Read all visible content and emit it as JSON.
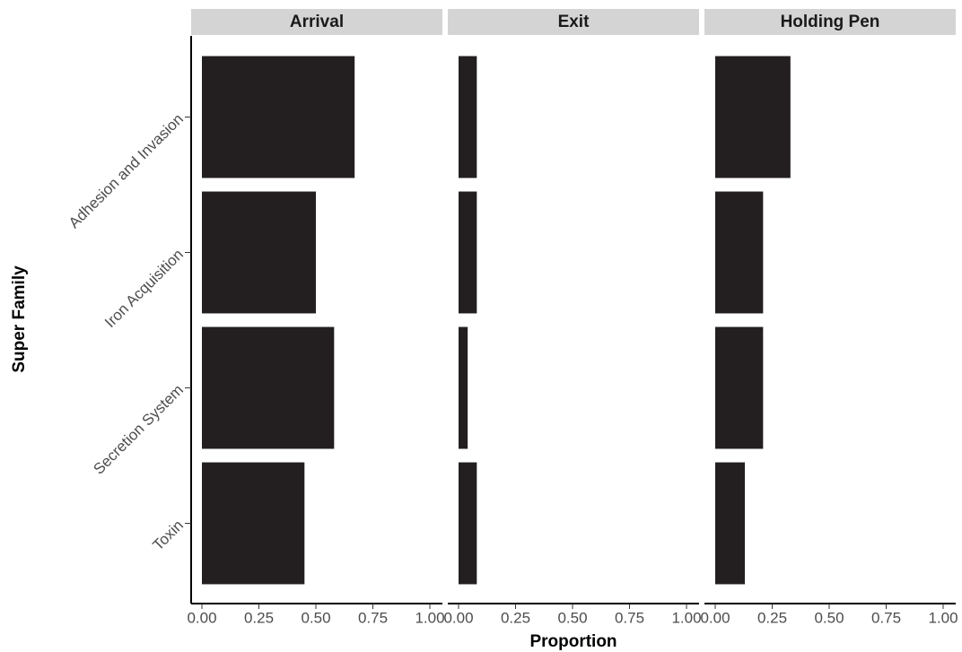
{
  "chart_data": {
    "type": "bar",
    "orientation": "horizontal",
    "xlabel": "Proportion",
    "ylabel": "Super Family",
    "categories": [
      "Adhesion and Invasion",
      "Iron Acquisition",
      "Secretion System",
      "Toxin"
    ],
    "color": "#231f20",
    "facets": [
      {
        "title": "Arrival",
        "values": [
          0.67,
          0.5,
          0.58,
          0.45
        ]
      },
      {
        "title": "Exit",
        "values": [
          0.08,
          0.08,
          0.04,
          0.08
        ]
      },
      {
        "title": "Holding Pen",
        "values": [
          0.33,
          0.21,
          0.21,
          0.13
        ]
      }
    ],
    "xlim": [
      0,
      1
    ],
    "xticks": [
      {
        "value": 0,
        "label": "0.00"
      },
      0.25,
      {
        "value": 0.5,
        "label": "0.50"
      },
      0.75,
      {
        "value": 1,
        "label": "1.00"
      }
    ],
    "grid": false
  }
}
